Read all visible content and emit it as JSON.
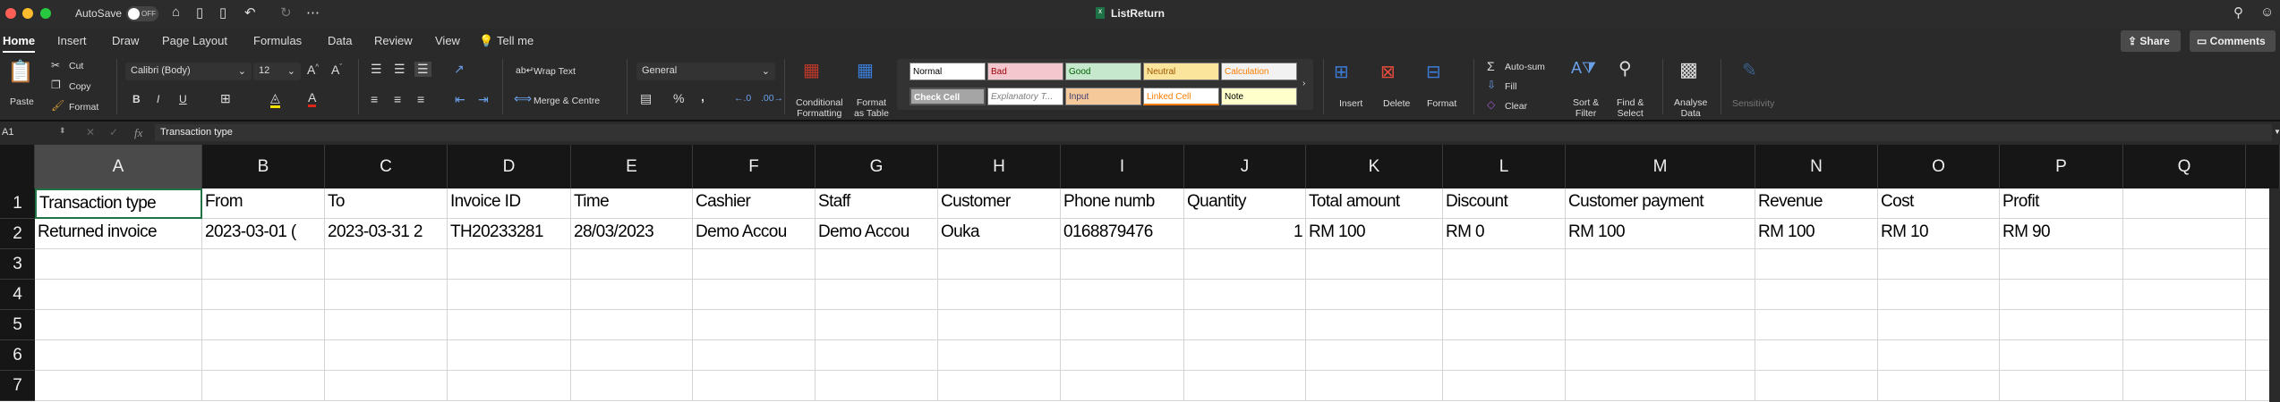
{
  "window": {
    "title": "ListReturn",
    "autosave_label": "AutoSave",
    "autosave_state": "OFF"
  },
  "tabs": [
    "Home",
    "Insert",
    "Draw",
    "Page Layout",
    "Formulas",
    "Data",
    "Review",
    "View",
    "Tell me"
  ],
  "header_buttons": {
    "share": "Share",
    "comments": "Comments"
  },
  "ribbon": {
    "paste": "Paste",
    "cut": "Cut",
    "copy": "Copy",
    "format_painter": "Format",
    "font_name": "Calibri (Body)",
    "font_size": "12",
    "bold": "B",
    "italic": "I",
    "underline": "U",
    "wrap_text": "Wrap Text",
    "merge_centre": "Merge & Centre",
    "number_format": "General",
    "conditional_formatting": [
      "Conditional",
      "Formatting"
    ],
    "format_as_table": [
      "Format",
      "as Table"
    ],
    "styles": [
      {
        "label": "Normal",
        "bg": "#ffffff",
        "fg": "#000000"
      },
      {
        "label": "Bad",
        "bg": "#f4c7ce",
        "fg": "#9c0006"
      },
      {
        "label": "Good",
        "bg": "#c6e9ce",
        "fg": "#006100"
      },
      {
        "label": "Neutral",
        "bg": "#fbe59c",
        "fg": "#9c5700"
      },
      {
        "label": "Calculation",
        "bg": "#f2f2f2",
        "fg": "#fa7d00"
      },
      {
        "label": "Check Cell",
        "bg": "#a5a5a5",
        "fg": "#ffffff"
      },
      {
        "label": "Explanatory T...",
        "bg": "#ffffff",
        "fg": "#7f7f7f"
      },
      {
        "label": "Input",
        "bg": "#f6c99b",
        "fg": "#3f3f76"
      },
      {
        "label": "Linked Cell",
        "bg": "#ffffff",
        "fg": "#fa7d00"
      },
      {
        "label": "Note",
        "bg": "#ffffcc",
        "fg": "#000000"
      }
    ],
    "insert": "Insert",
    "delete": "Delete",
    "format": "Format",
    "autosum": "Auto-sum",
    "fill": "Fill",
    "clear": "Clear",
    "sort_filter": [
      "Sort &",
      "Filter"
    ],
    "find_select": [
      "Find &",
      "Select"
    ],
    "analyse_data": [
      "Analyse",
      "Data"
    ],
    "sensitivity": "Sensitivity"
  },
  "formula_bar": {
    "name_box": "A1",
    "fx": "fx",
    "value": "Transaction type"
  },
  "sheet": {
    "selected_cell": "A1",
    "columns": [
      "A",
      "B",
      "C",
      "D",
      "E",
      "F",
      "G",
      "H",
      "I",
      "J",
      "K",
      "L",
      "M",
      "N",
      "O",
      "P",
      "Q"
    ],
    "row_numbers": [
      "1",
      "2",
      "3",
      "4",
      "5",
      "6",
      "7"
    ],
    "rows": [
      [
        "Transaction type",
        "From",
        "To",
        "Invoice ID",
        "Time",
        "Cashier",
        "Staff",
        "Customer",
        "Phone numb",
        "Quantity",
        "Total amount",
        "Discount",
        "Customer payment",
        "Revenue",
        "Cost",
        "Profit",
        ""
      ],
      [
        "Returned invoice",
        "2023-03-01 (",
        "2023-03-31 2",
        "TH20233281",
        "28/03/2023",
        "Demo Accou",
        "Demo Accou",
        "Ouka",
        "0168879476",
        "1",
        "RM 100",
        "RM 0",
        "RM 100",
        "RM 100",
        "RM 10",
        "RM 90",
        ""
      ]
    ]
  }
}
